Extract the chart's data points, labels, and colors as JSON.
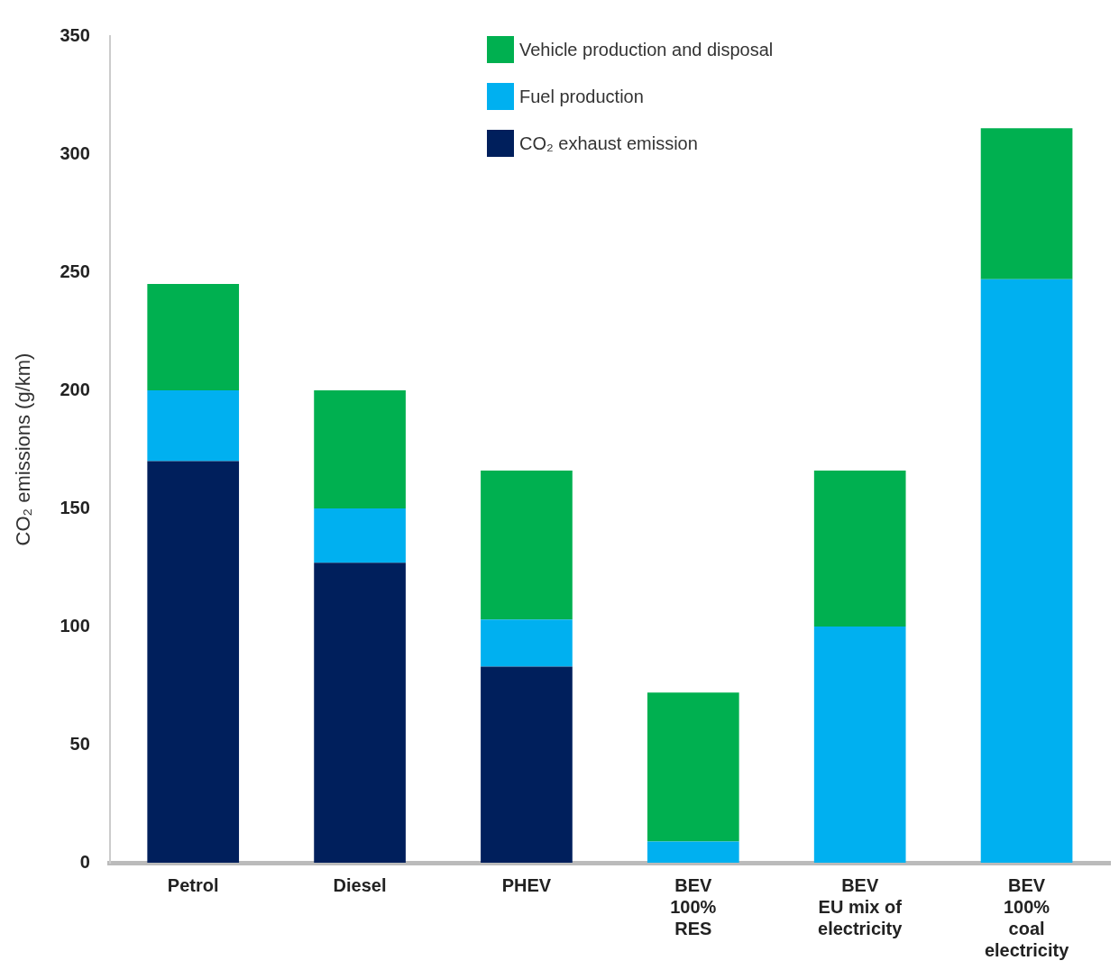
{
  "chart_data": {
    "type": "bar",
    "stacked": true,
    "ylabel": "CO₂ emissions (g/km)",
    "categories": [
      "Petrol",
      "Diesel",
      "PHEV",
      "BEV\n100%\nRES",
      "BEV\nEU mix of\nelectricity",
      "BEV\n100%\ncoal\nelectricity"
    ],
    "series": [
      {
        "name": "CO₂ exhaust emission",
        "color": "#001f5c",
        "values": [
          170,
          127,
          83,
          null,
          null,
          null
        ]
      },
      {
        "name": "Fuel production",
        "color": "#00b0f0",
        "values": [
          30,
          23,
          20,
          9,
          100,
          247
        ]
      },
      {
        "name": "Vehicle production and disposal",
        "color": "#00b050",
        "values": [
          45,
          50,
          63,
          63,
          66,
          64
        ]
      }
    ],
    "ylim": [
      0,
      350
    ],
    "yticks": [
      0,
      50,
      100,
      150,
      200,
      250,
      300,
      350
    ],
    "grid": false,
    "legend": "top"
  }
}
